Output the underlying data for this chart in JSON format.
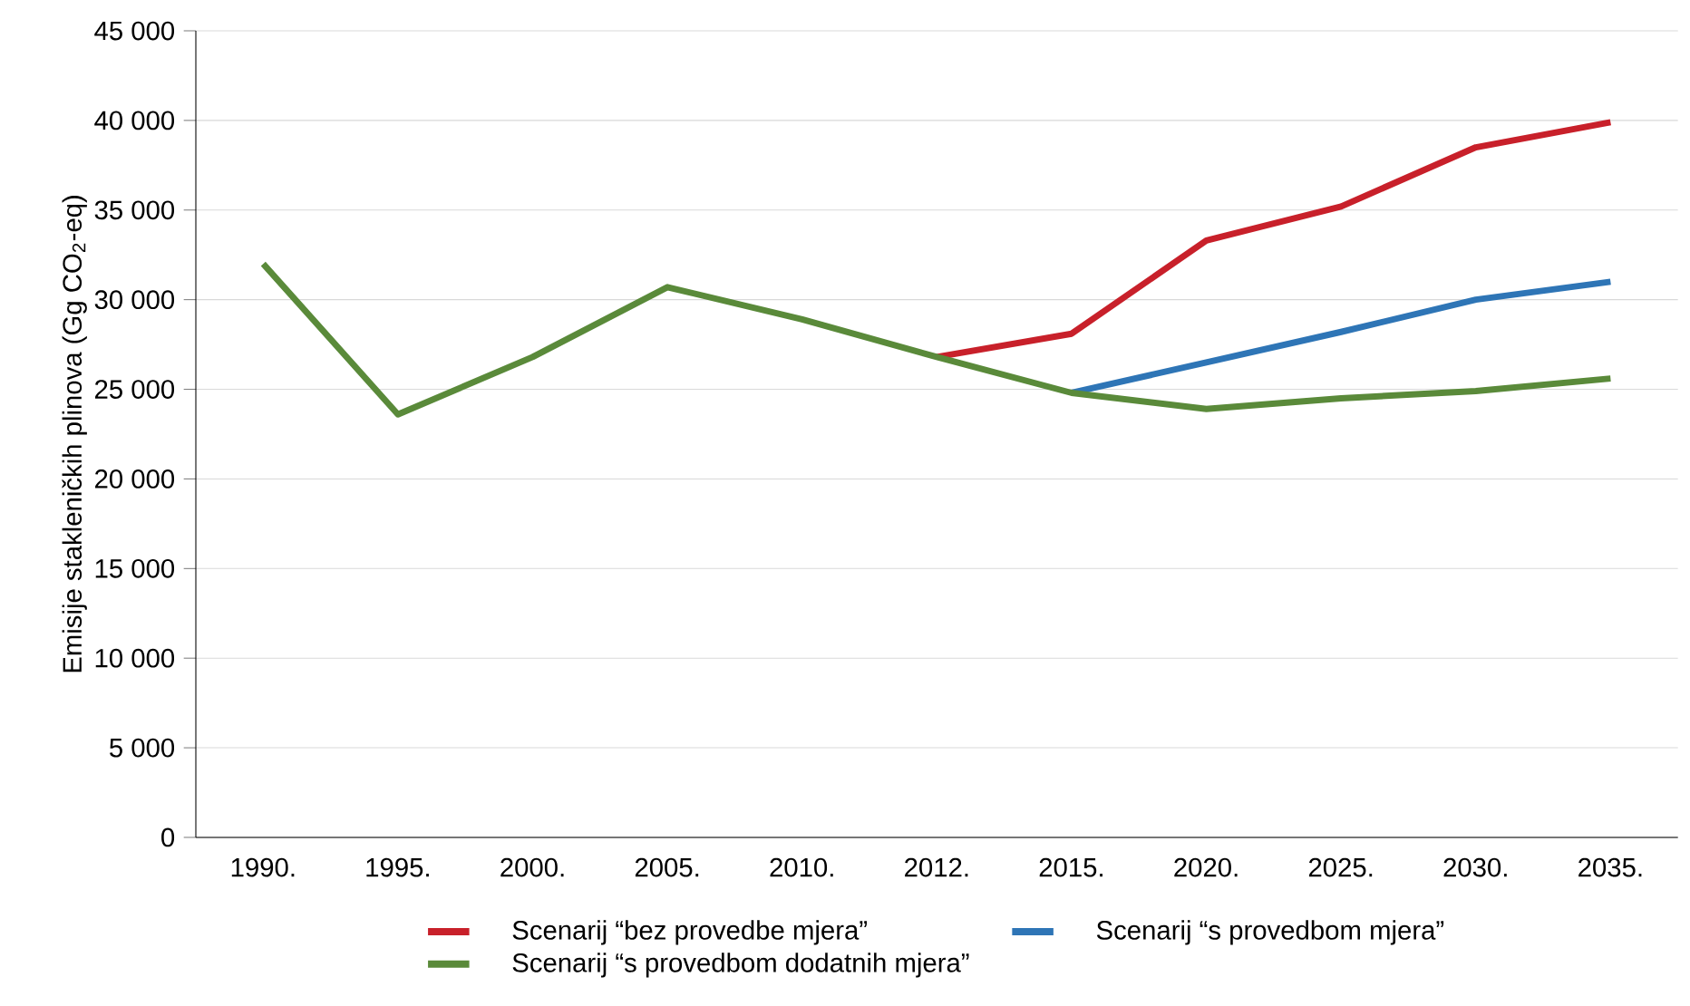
{
  "chart_data": {
    "type": "line",
    "ylabel": "Emisije stakleničkih plinova (Gg CO$_{2}$-eq)",
    "categories": [
      "1990.",
      "1995.",
      "2000.",
      "2005.",
      "2010.",
      "2012.",
      "2015.",
      "2020.",
      "2025.",
      "2030.",
      "2035."
    ],
    "series": [
      {
        "name": "Scenarij “bez provedbe mjera”",
        "color": "#c8202a",
        "values": [
          null,
          null,
          null,
          null,
          null,
          26800,
          28100,
          33300,
          35200,
          38500,
          39900
        ]
      },
      {
        "name": "Scenarij “s provedbom mjera”",
        "color": "#2e75b6",
        "values": [
          null,
          null,
          null,
          null,
          null,
          null,
          24800,
          26500,
          28200,
          30000,
          31000
        ]
      },
      {
        "name": "Scenarij “s provedbom dodatnih mjera”",
        "color": "#5a8a3a",
        "values": [
          32000,
          23600,
          26800,
          30700,
          28900,
          26800,
          24800,
          23900,
          24500,
          24900,
          25600
        ]
      }
    ],
    "ylim": [
      0,
      45000
    ],
    "yticks": [
      0,
      {
        "value": 5000,
        "label": "5 000"
      },
      {
        "value": 10000,
        "label": "10 000"
      },
      {
        "value": 15000,
        "label": "15 000"
      },
      {
        "value": 20000,
        "label": "20 000"
      },
      {
        "value": 25000,
        "label": "25 000"
      },
      {
        "value": 30000,
        "label": "30 000"
      },
      {
        "value": 35000,
        "label": "35 000"
      },
      {
        "value": 40000,
        "label": "40 000"
      },
      {
        "value": 45000,
        "label": "45 000"
      }
    ],
    "grid": "y",
    "legend": "bottom",
    "marker": "none",
    "line_style": "solid"
  }
}
